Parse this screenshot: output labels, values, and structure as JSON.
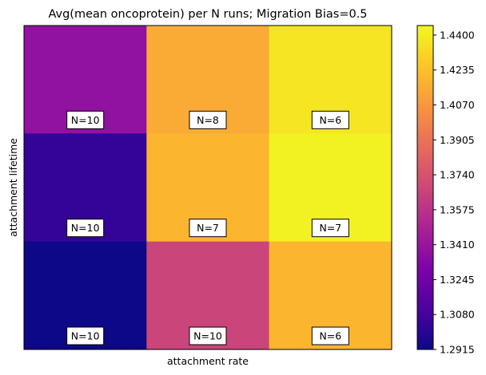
{
  "chart_data": {
    "type": "heatmap",
    "title": "Avg(mean oncoprotein) per N runs; Migration Bias=0.5",
    "xlabel": "attachment rate",
    "ylabel": "attachment lifetime",
    "rows": 3,
    "cols": 3,
    "values": [
      [
        1.338,
        1.415,
        1.437
      ],
      [
        1.303,
        1.419,
        1.442
      ],
      [
        1.2915,
        1.367,
        1.419
      ]
    ],
    "counts": [
      [
        "N=10",
        "N=8",
        "N=6"
      ],
      [
        "N=10",
        "N=7",
        "N=7"
      ],
      [
        "N=10",
        "N=10",
        "N=6"
      ]
    ],
    "colormap": "plasma",
    "colorbar": {
      "min": 1.2915,
      "max": 1.4445,
      "ticks": [
        "1.2915",
        "1.3080",
        "1.3245",
        "1.3410",
        "1.3575",
        "1.3740",
        "1.3905",
        "1.4070",
        "1.4235",
        "1.4400"
      ]
    },
    "grid": false
  }
}
